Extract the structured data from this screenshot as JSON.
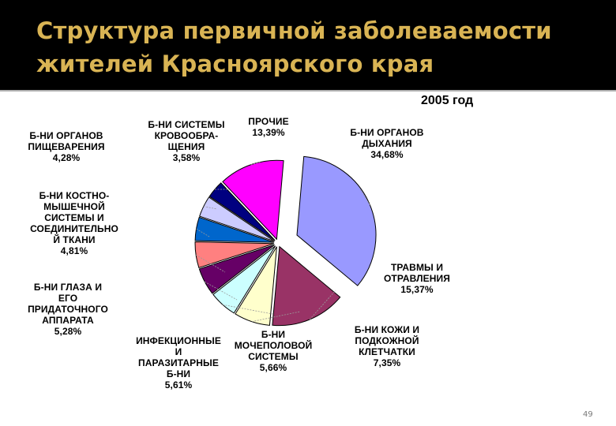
{
  "slide": {
    "title_line1": "Структура первичной заболеваемости",
    "title_line2": "жителей Красноярского края",
    "page_number": "49",
    "colors": {
      "title_band": "#000000",
      "title_text": "#d9b454"
    }
  },
  "chart_data": {
    "type": "pie",
    "title": "2005 год",
    "slices": [
      {
        "label_lines": [
          "Б-НИ ОРГАНОВ",
          "ДЫХАНИЯ"
        ],
        "value": 34.68,
        "value_text": "34,68%",
        "color": "#9999ff",
        "exploded": true
      },
      {
        "label_lines": [
          "ТРАВМЫ И",
          "ОТРАВЛЕНИЯ"
        ],
        "value": 15.37,
        "value_text": "15,37%",
        "color": "#993366",
        "exploded": false
      },
      {
        "label_lines": [
          "Б-НИ КОЖИ И",
          "ПОДКОЖНОЙ",
          "КЛЕТЧАТКИ"
        ],
        "value": 7.35,
        "value_text": "7,35%",
        "color": "#ffffcc",
        "exploded": false
      },
      {
        "label_lines": [
          "Б-НИ",
          "МОЧЕПОЛОВОЙ",
          "СИСТЕМЫ"
        ],
        "value": 5.66,
        "value_text": "5,66%",
        "color": "#ccffff",
        "exploded": false
      },
      {
        "label_lines": [
          "ИНФЕКЦИОННЫЕ",
          "И",
          "ПАРАЗИТАРНЫЕ",
          "Б-НИ"
        ],
        "value": 5.61,
        "value_text": "5,61%",
        "color": "#660066",
        "exploded": false
      },
      {
        "label_lines": [
          "Б-НИ ГЛАЗА И",
          "ЕГО",
          "ПРИДАТОЧНОГО",
          "АППАРАТА"
        ],
        "value": 5.28,
        "value_text": "5,28%",
        "color": "#ff8080",
        "exploded": false
      },
      {
        "label_lines": [
          "Б-НИ КОСТНО-",
          "МЫШЕЧНОЙ",
          "СИСТЕМЫ И",
          "СОЕДИНИТЕЛЬНО",
          "Й ТКАНИ"
        ],
        "value": 4.81,
        "value_text": "4,81%",
        "color": "#0066cc",
        "exploded": false
      },
      {
        "label_lines": [
          "Б-НИ ОРГАНОВ",
          "ПИЩЕВАРЕНИЯ"
        ],
        "value": 4.28,
        "value_text": "4,28%",
        "color": "#ccccff",
        "exploded": false
      },
      {
        "label_lines": [
          "Б-НИ СИСТЕМЫ",
          "КРОВООБРА-",
          "ЩЕНИЯ"
        ],
        "value": 3.58,
        "value_text": "3,58%",
        "color": "#000080",
        "exploded": false
      },
      {
        "label_lines": [
          "ПРОЧИЕ"
        ],
        "value": 13.39,
        "value_text": "13,39%",
        "color": "#ff00ff",
        "exploded": false
      }
    ]
  }
}
